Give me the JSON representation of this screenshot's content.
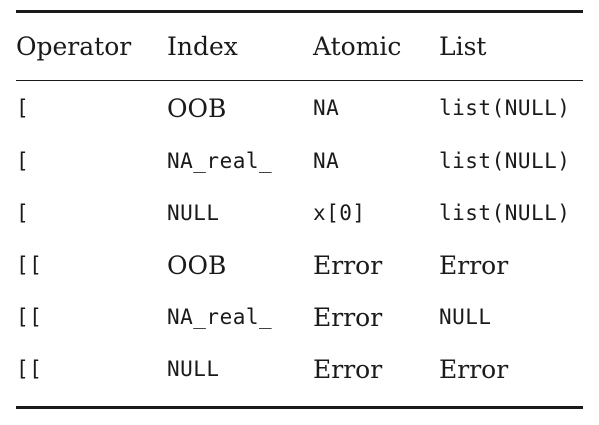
{
  "table": {
    "headers": [
      "Operator",
      "Index",
      "Atomic",
      "List"
    ],
    "rows": [
      [
        {
          "text": "[",
          "style": "mono"
        },
        {
          "text": "OOB",
          "style": "serif"
        },
        {
          "text": "NA",
          "style": "mono"
        },
        {
          "text": "list(NULL)",
          "style": "mono"
        }
      ],
      [
        {
          "text": "[",
          "style": "mono"
        },
        {
          "text": "NA_real_",
          "style": "mono"
        },
        {
          "text": "NA",
          "style": "mono"
        },
        {
          "text": "list(NULL)",
          "style": "mono"
        }
      ],
      [
        {
          "text": "[",
          "style": "mono"
        },
        {
          "text": "NULL",
          "style": "mono"
        },
        {
          "text": "x[0]",
          "style": "mono"
        },
        {
          "text": "list(NULL)",
          "style": "mono"
        }
      ],
      [
        {
          "text": "[[",
          "style": "mono"
        },
        {
          "text": "OOB",
          "style": "serif"
        },
        {
          "text": "Error",
          "style": "serif"
        },
        {
          "text": "Error",
          "style": "serif"
        }
      ],
      [
        {
          "text": "[[",
          "style": "mono"
        },
        {
          "text": "NA_real_",
          "style": "mono"
        },
        {
          "text": "Error",
          "style": "serif"
        },
        {
          "text": "NULL",
          "style": "mono"
        }
      ],
      [
        {
          "text": "[[",
          "style": "mono"
        },
        {
          "text": "NULL",
          "style": "mono"
        },
        {
          "text": "Error",
          "style": "serif"
        },
        {
          "text": "Error",
          "style": "serif"
        }
      ]
    ]
  }
}
